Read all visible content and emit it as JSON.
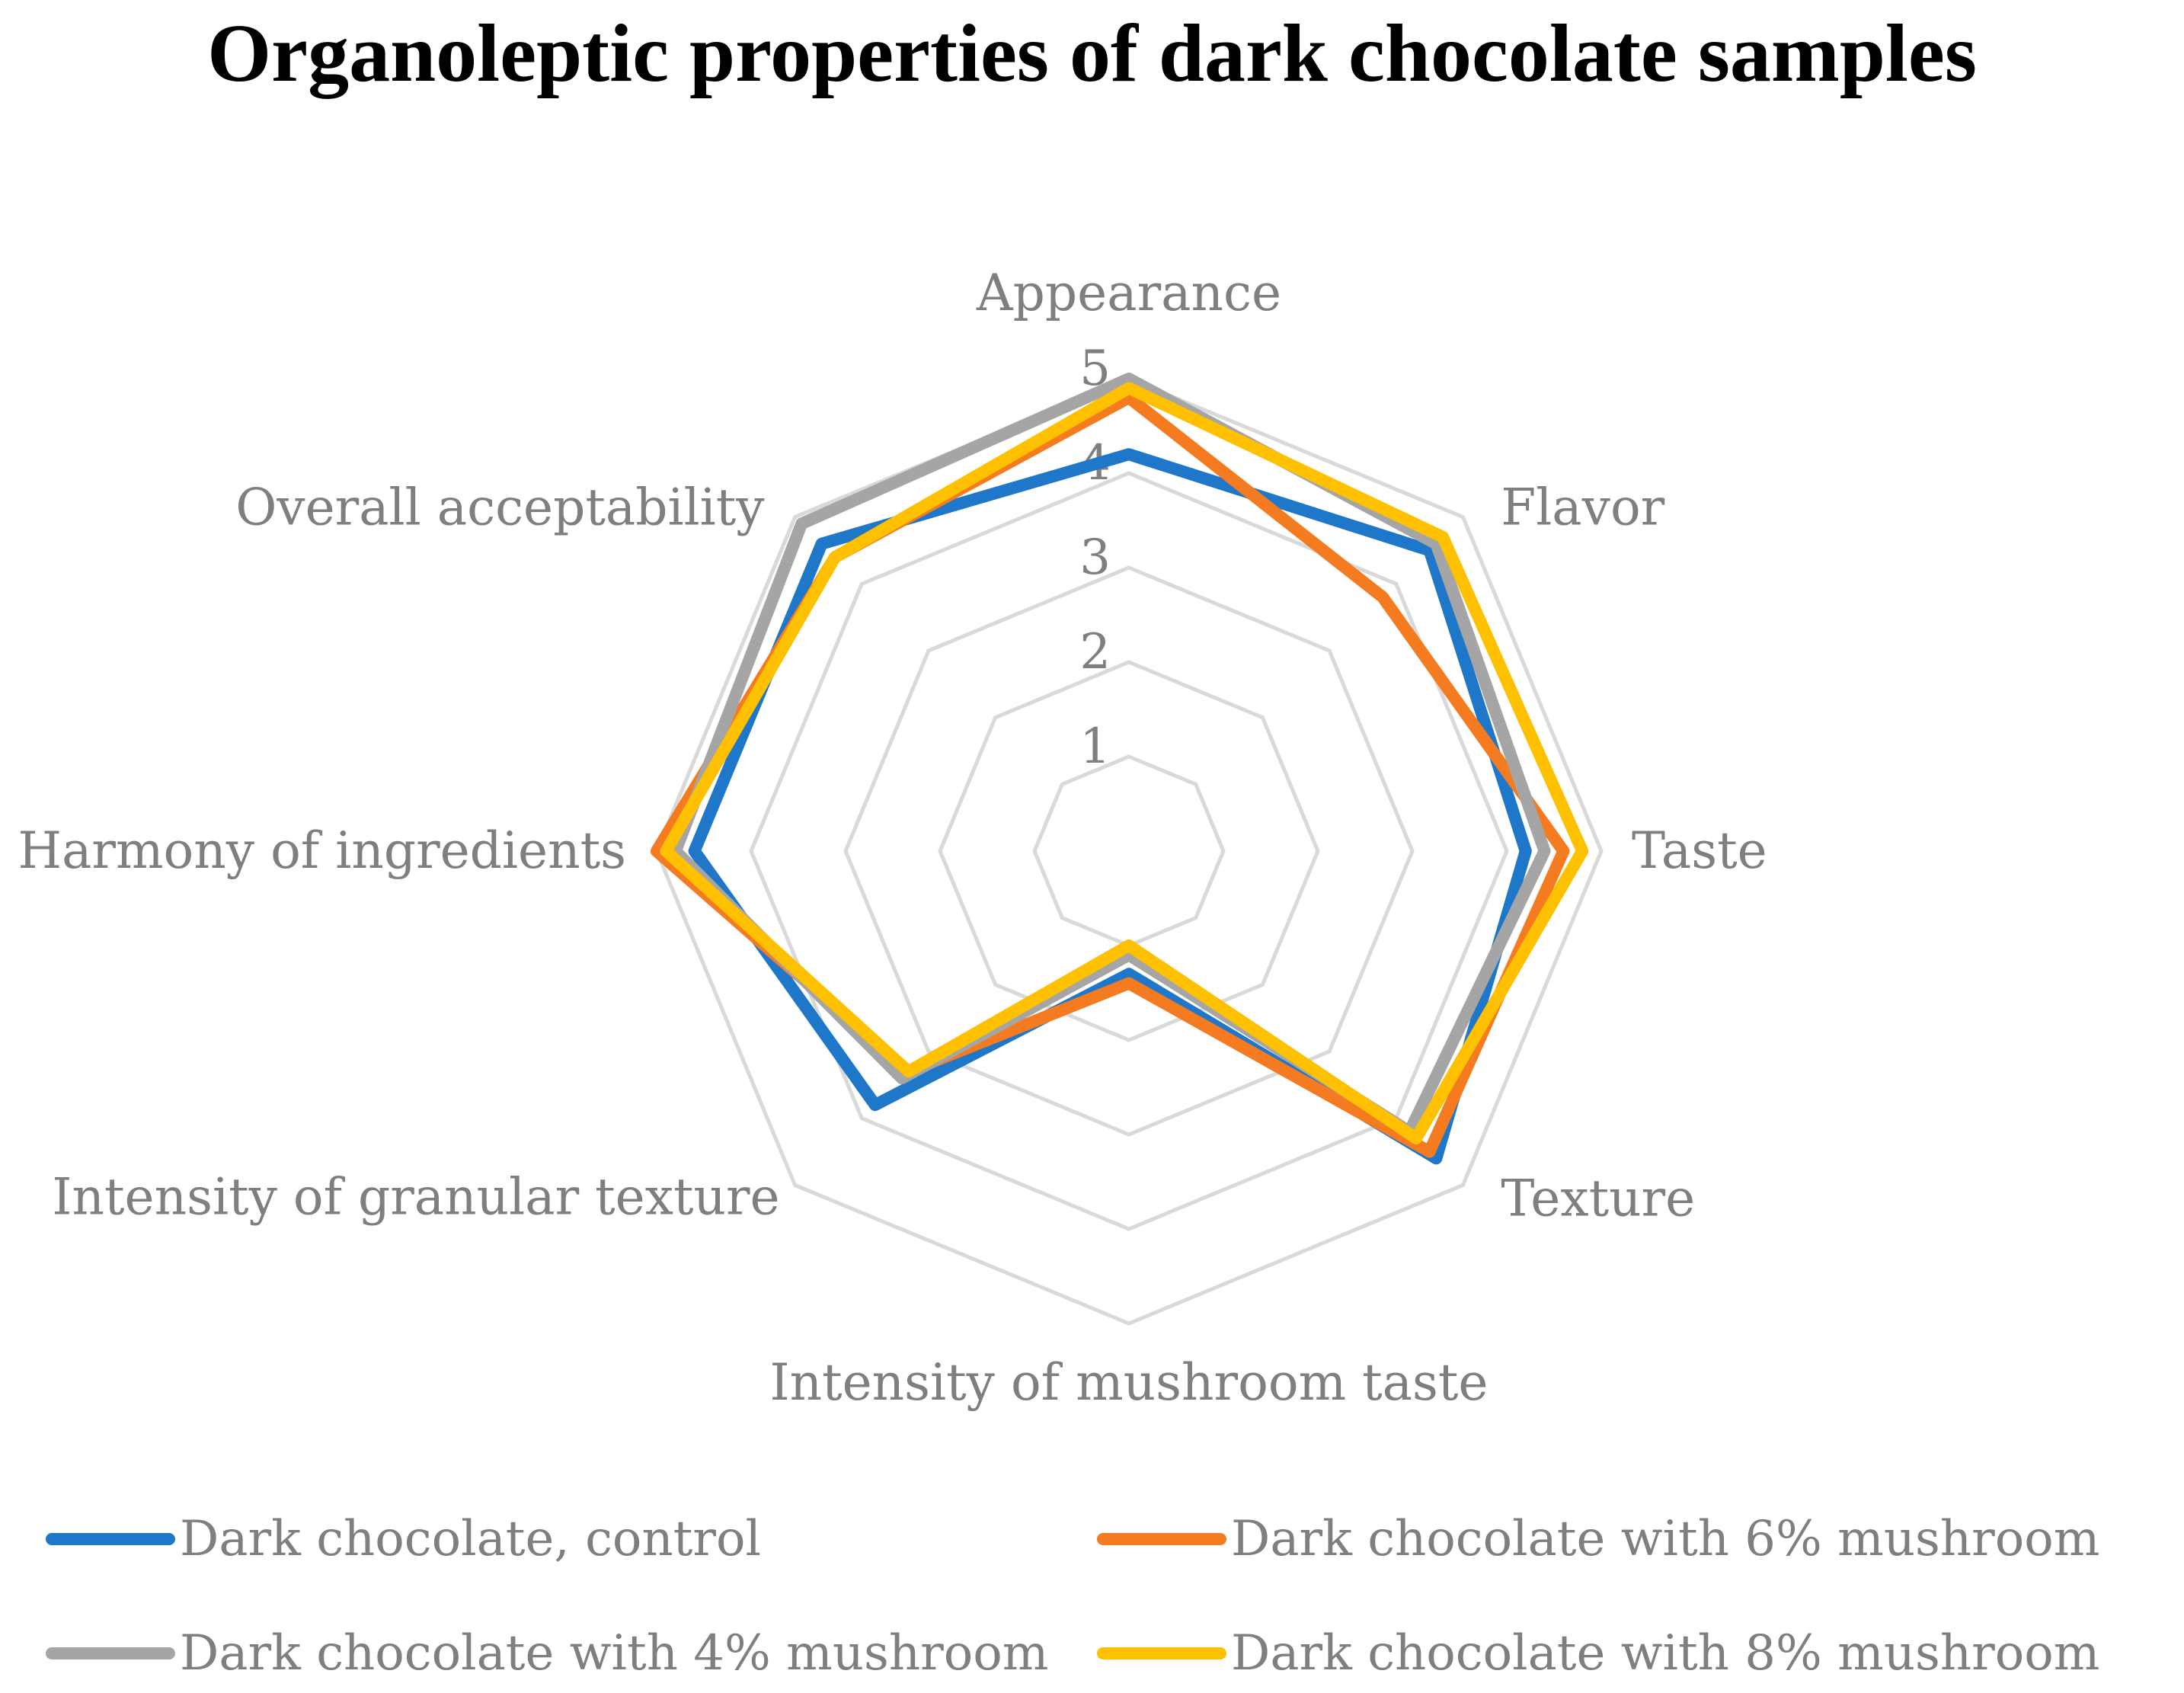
{
  "chart_data": {
    "type": "radar",
    "title": "Organoleptic properties of dark chocolate samples",
    "axes": [
      "Appearance",
      "Flavor",
      "Taste",
      "Texture",
      "Intensity of mushroom taste",
      "Intensity of granular texture",
      "Harmony of ingredients",
      "Overall acceptability"
    ],
    "rlim": [
      0,
      5
    ],
    "ticks": [
      "1",
      "2",
      "3",
      "4",
      "5"
    ],
    "grid": true,
    "legend_position": "bottom",
    "series": [
      {
        "name": "Dark chocolate, control",
        "color": "#1f77c9",
        "values": [
          4.2,
          4.5,
          4.2,
          4.6,
          1.3,
          3.8,
          4.6,
          4.6
        ]
      },
      {
        "name": "Dark chocolate with 6% mushroom",
        "color": "#f47b20",
        "values": [
          4.8,
          3.8,
          4.6,
          4.5,
          1.4,
          3.3,
          5.0,
          4.4
        ]
      },
      {
        "name": "Dark chocolate with 4% mushroom",
        "color": "#a5a5a5",
        "values": [
          5.0,
          4.6,
          4.4,
          4.2,
          1.1,
          3.4,
          4.8,
          4.9
        ]
      },
      {
        "name": "Dark chocolate with 8% mushroom",
        "color": "#ffc000",
        "values": [
          4.9,
          4.7,
          4.8,
          4.3,
          1.0,
          3.3,
          4.9,
          4.4
        ]
      }
    ]
  }
}
